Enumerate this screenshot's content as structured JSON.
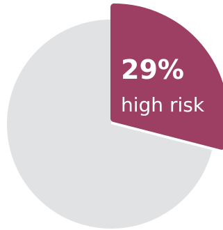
{
  "chart_data": {
    "type": "pie",
    "categories": [
      "high risk",
      null
    ],
    "values": [
      29,
      71
    ],
    "value_labels": [
      "29%",
      null
    ],
    "colors": [
      "#9c3f63",
      "#e1e2e4"
    ]
  }
}
